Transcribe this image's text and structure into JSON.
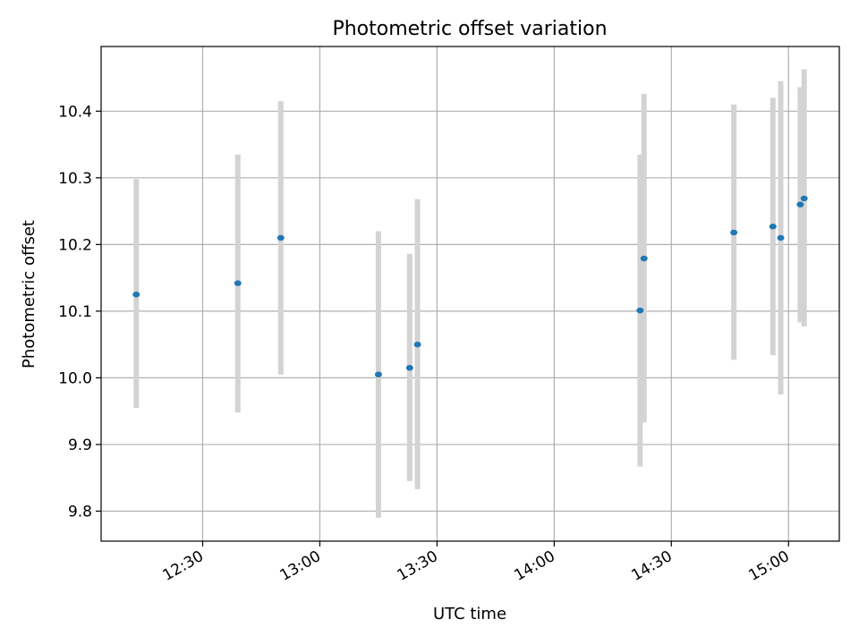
{
  "chart_data": {
    "type": "scatter",
    "title": "Photometric offset variation",
    "xlabel": "UTC time",
    "ylabel": "Photometric offset",
    "xlim": [
      "12:04",
      "15:13"
    ],
    "ylim": [
      9.755,
      10.497
    ],
    "grid": true,
    "x_ticks": [
      "12:30",
      "13:00",
      "13:30",
      "14:00",
      "14:30",
      "15:00"
    ],
    "y_ticks": [
      9.8,
      9.9,
      10.0,
      10.1,
      10.2,
      10.3,
      10.4
    ],
    "series": [
      {
        "points": [
          {
            "x": "12:13",
            "y": 10.125,
            "err_low": 9.955,
            "err_high": 10.298
          },
          {
            "x": "12:39",
            "y": 10.142,
            "err_low": 9.948,
            "err_high": 10.335
          },
          {
            "x": "12:50",
            "y": 10.21,
            "err_low": 10.005,
            "err_high": 10.415
          },
          {
            "x": "13:15",
            "y": 10.005,
            "err_low": 9.79,
            "err_high": 10.22
          },
          {
            "x": "13:23",
            "y": 10.015,
            "err_low": 9.845,
            "err_high": 10.186
          },
          {
            "x": "13:25",
            "y": 10.05,
            "err_low": 9.833,
            "err_high": 10.268
          },
          {
            "x": "14:22",
            "y": 10.101,
            "err_low": 9.867,
            "err_high": 10.335
          },
          {
            "x": "14:23",
            "y": 10.179,
            "err_low": 9.933,
            "err_high": 10.426
          },
          {
            "x": "14:46",
            "y": 10.218,
            "err_low": 10.027,
            "err_high": 10.41
          },
          {
            "x": "14:56",
            "y": 10.227,
            "err_low": 10.034,
            "err_high": 10.42
          },
          {
            "x": "14:58",
            "y": 10.21,
            "err_low": 9.975,
            "err_high": 10.445
          },
          {
            "x": "15:03",
            "y": 10.26,
            "err_low": 10.083,
            "err_high": 10.436
          },
          {
            "x": "15:04",
            "y": 10.269,
            "err_low": 10.077,
            "err_high": 10.463
          }
        ]
      }
    ],
    "colors": {
      "marker": "#1f77b4",
      "errorbar": "#d3d3d3",
      "grid": "#b0b0b0",
      "axis": "#000000"
    }
  }
}
